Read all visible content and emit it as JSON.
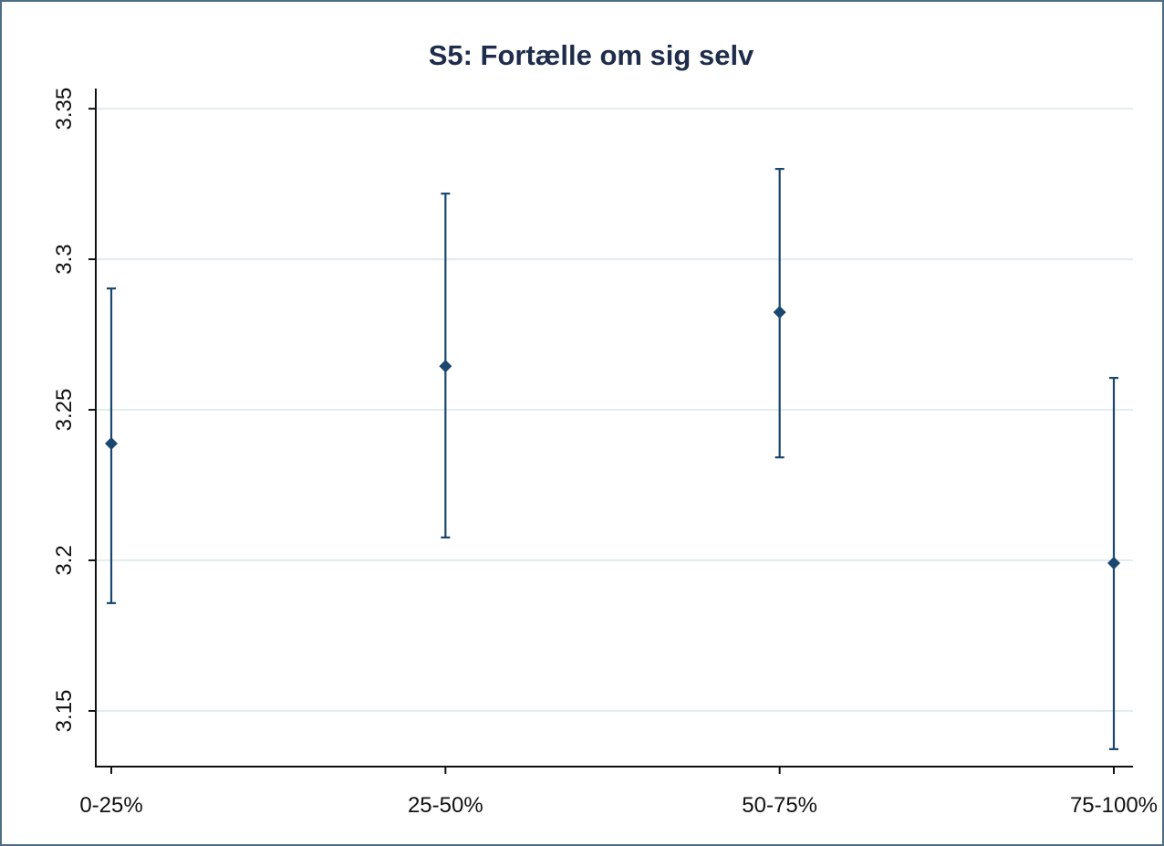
{
  "chart_data": {
    "type": "errorbar",
    "title": "S5: Fortælle om sig selv",
    "categories": [
      "0-25%",
      "25-50%",
      "50-75%",
      "75-100%"
    ],
    "series": [
      {
        "color": "#1a476f",
        "values": [
          3.2388,
          3.2645,
          3.2824,
          3.1991
        ],
        "lower": [
          3.1858,
          3.2076,
          3.2342,
          3.1373
        ],
        "upper": [
          3.2903,
          3.3218,
          3.33,
          3.2606
        ]
      }
    ],
    "ylim": [
      3.1315,
      3.3567
    ],
    "yticks": [
      3.15,
      3.2,
      3.25,
      3.3,
      3.35
    ],
    "grid": true
  }
}
